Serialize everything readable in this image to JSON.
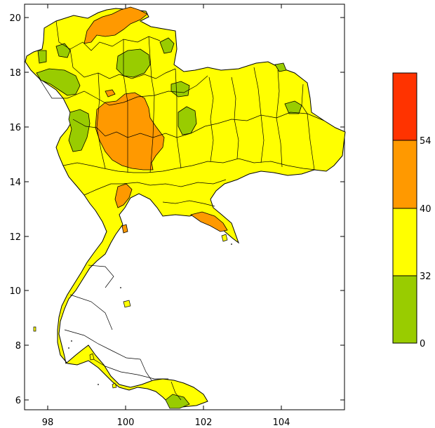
{
  "map": {
    "x_ticks": [
      "98",
      "100",
      "102",
      "104"
    ],
    "y_ticks": [
      "20",
      "18",
      "16",
      "14",
      "12",
      "10",
      "8",
      "6"
    ],
    "colors": {
      "green": "#99cc00",
      "yellow": "#ffff00",
      "orange": "#ff9900",
      "red": "#ff3300",
      "outline": "#000000"
    }
  },
  "legend": {
    "bins": [
      {
        "color": "#ff3300"
      },
      {
        "color": "#ff9900"
      },
      {
        "color": "#ffff00"
      },
      {
        "color": "#99cc00"
      }
    ],
    "labels": [
      "54",
      "40",
      "32",
      "0"
    ]
  }
}
